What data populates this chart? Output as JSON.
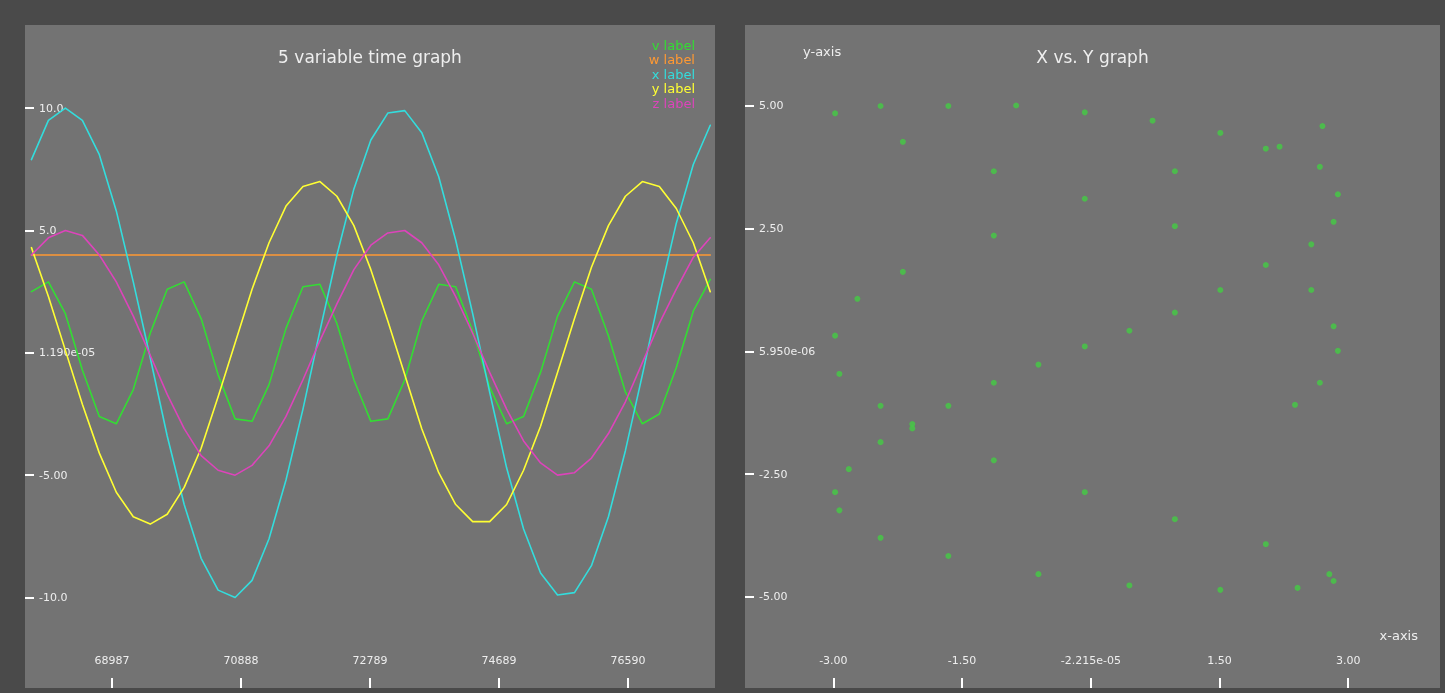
{
  "chart_data": [
    {
      "type": "line",
      "title": "5 variable time graph",
      "legend": "top right",
      "grid": false,
      "line_style": "solid",
      "x": [
        67800,
        68050,
        68300,
        68550,
        68800,
        69050,
        69300,
        69550,
        69800,
        70050,
        70300,
        70550,
        70800,
        71050,
        71300,
        71550,
        71800,
        72050,
        72300,
        72550,
        72800,
        73050,
        73300,
        73550,
        73800,
        74050,
        74300,
        74550,
        74800,
        75050,
        75300,
        75550,
        75800,
        76050,
        76300,
        76550,
        76800,
        77050,
        77300,
        77550,
        77800
      ],
      "xlim": [
        67705,
        77870
      ],
      "xticks": [
        68987,
        70888,
        72789,
        74689,
        76590
      ],
      "ylim": [
        -13.7,
        13.4
      ],
      "yticks": [
        {
          "value": 10,
          "label": "10.0"
        },
        {
          "value": 5,
          "label": "5.0"
        },
        {
          "value": 1.19e-05,
          "label": "1.190e-05"
        },
        {
          "value": -5,
          "label": "-5.00"
        },
        {
          "value": -10,
          "label": "-10.0"
        }
      ],
      "series": [
        {
          "name": "v label",
          "color": "#33dd33",
          "values": [
            2.5,
            2.9,
            1.6,
            -0.7,
            -2.6,
            -2.9,
            -1.5,
            0.8,
            2.6,
            2.9,
            1.4,
            -0.9,
            -2.7,
            -2.8,
            -1.3,
            1.0,
            2.7,
            2.8,
            1.2,
            -1.1,
            -2.8,
            -2.7,
            -1.1,
            1.3,
            2.8,
            2.7,
            0.9,
            -1.4,
            -2.9,
            -2.6,
            -0.8,
            1.5,
            2.9,
            2.6,
            0.7,
            -1.6,
            -2.9,
            -2.5,
            -0.6,
            1.7,
            3.0
          ]
        },
        {
          "name": "w label",
          "color": "#ff9933",
          "values": [
            4.0,
            4.0,
            4.0,
            4.0,
            4.0,
            4.0,
            4.0,
            4.0,
            4.0,
            4.0,
            4.0,
            4.0,
            4.0,
            4.0,
            4.0,
            4.0,
            4.0,
            4.0,
            4.0,
            4.0,
            4.0,
            4.0,
            4.0,
            4.0,
            4.0,
            4.0,
            4.0,
            4.0,
            4.0,
            4.0,
            4.0,
            4.0,
            4.0,
            4.0,
            4.0,
            4.0,
            4.0,
            4.0,
            4.0,
            4.0,
            4.0
          ]
        },
        {
          "name": "x label",
          "color": "#33dddd",
          "values": [
            7.9,
            9.5,
            10.0,
            9.5,
            8.1,
            5.8,
            2.9,
            -0.2,
            -3.4,
            -6.2,
            -8.4,
            -9.7,
            -10.0,
            -9.3,
            -7.6,
            -5.2,
            -2.3,
            0.9,
            4.0,
            6.7,
            8.7,
            9.8,
            9.9,
            9.0,
            7.2,
            4.6,
            1.6,
            -1.6,
            -4.7,
            -7.2,
            -9.0,
            -9.9,
            -9.8,
            -8.7,
            -6.7,
            -4.0,
            -0.9,
            2.3,
            5.3,
            7.7,
            9.3
          ]
        },
        {
          "name": "y label",
          "color": "#ffff33",
          "values": [
            4.3,
            2.3,
            0.1,
            -2.1,
            -4.1,
            -5.7,
            -6.7,
            -7.0,
            -6.6,
            -5.5,
            -3.9,
            -1.8,
            0.4,
            2.6,
            4.5,
            6.0,
            6.8,
            7.0,
            6.4,
            5.2,
            3.4,
            1.3,
            -0.9,
            -3.1,
            -4.9,
            -6.2,
            -6.9,
            -6.9,
            -6.2,
            -4.8,
            -3.0,
            -0.8,
            1.4,
            3.5,
            5.2,
            6.4,
            7.0,
            6.8,
            5.9,
            4.5,
            2.5
          ]
        },
        {
          "name": "z label",
          "color": "#dd44bb",
          "values": [
            4.0,
            4.7,
            5.0,
            4.8,
            4.0,
            2.9,
            1.5,
            -0.1,
            -1.7,
            -3.1,
            -4.2,
            -4.8,
            -5.0,
            -4.6,
            -3.8,
            -2.6,
            -1.1,
            0.5,
            2.0,
            3.4,
            4.4,
            4.9,
            5.0,
            4.5,
            3.6,
            2.3,
            0.8,
            -0.8,
            -2.3,
            -3.6,
            -4.5,
            -5.0,
            -4.9,
            -4.3,
            -3.3,
            -2.0,
            -0.4,
            1.2,
            2.6,
            3.9,
            4.7
          ]
        }
      ]
    },
    {
      "type": "scatter",
      "title": "X vs. Y graph",
      "xlabel": "x-axis",
      "ylabel": "y-axis",
      "legend": false,
      "grid": false,
      "marker": "circle",
      "xlim": [
        -4.03,
        4.07
      ],
      "xticks": [
        {
          "value": -3,
          "label": "-3.00"
        },
        {
          "value": -1.5,
          "label": "-1.50"
        },
        {
          "value": -2.215e-05,
          "label": "-2.215e-05"
        },
        {
          "value": 1.5,
          "label": "1.50"
        },
        {
          "value": 3,
          "label": "3.00"
        }
      ],
      "ylim": [
        -6.86,
        6.65
      ],
      "yticks": [
        {
          "value": 5,
          "label": "5.00"
        },
        {
          "value": 2.5,
          "label": "2.50"
        },
        {
          "value": 5.95e-06,
          "label": "5.950e-06"
        },
        {
          "value": -2.5,
          "label": "-2.50"
        },
        {
          "value": -5,
          "label": "-5.00"
        }
      ],
      "series": [
        {
          "color": "#44cc44",
          "x": [
            2.7,
            2.04,
            0.98,
            -0.07,
            -1.13,
            -2.19,
            -2.72,
            -2.98,
            -2.93,
            -2.45,
            -2.08,
            -1.13,
            -0.07,
            0.98,
            2.04,
            2.78,
            2.83,
            2.41,
            1.51,
            0.45,
            -0.61,
            -1.66,
            -2.45,
            -2.93,
            -2.98,
            -2.82,
            -2.45,
            -2.08,
            -1.66,
            -1.13,
            -0.61,
            -0.07,
            0.45,
            0.98,
            1.51,
            2.04,
            2.57,
            2.83,
            2.88,
            2.67,
            2.2,
            1.51,
            0.72,
            -0.07,
            -0.87,
            -1.66,
            -2.45,
            -2.98,
            -2.19,
            -1.13,
            0.98,
            2.57,
            2.83,
            2.88,
            2.67,
            2.38
          ],
          "values": [
            4.59,
            4.13,
            3.67,
            3.11,
            2.36,
            1.62,
            1.07,
            0.32,
            -0.46,
            -1.11,
            -1.57,
            -2.22,
            -2.87,
            -3.42,
            -3.93,
            -4.54,
            -4.68,
            -4.82,
            -4.86,
            -4.77,
            -4.54,
            -4.17,
            -3.8,
            -3.24,
            -2.87,
            -2.4,
            -1.85,
            -1.48,
            -1.11,
            -0.64,
            -0.27,
            0.1,
            0.42,
            0.79,
            1.25,
            1.76,
            2.18,
            2.64,
            3.2,
            3.76,
            4.17,
            4.45,
            4.7,
            4.87,
            5.01,
            5.0,
            5.0,
            4.85,
            4.27,
            3.67,
            2.55,
            1.25,
            0.51,
            0.01,
            -0.64,
            -1.09
          ]
        }
      ]
    }
  ]
}
